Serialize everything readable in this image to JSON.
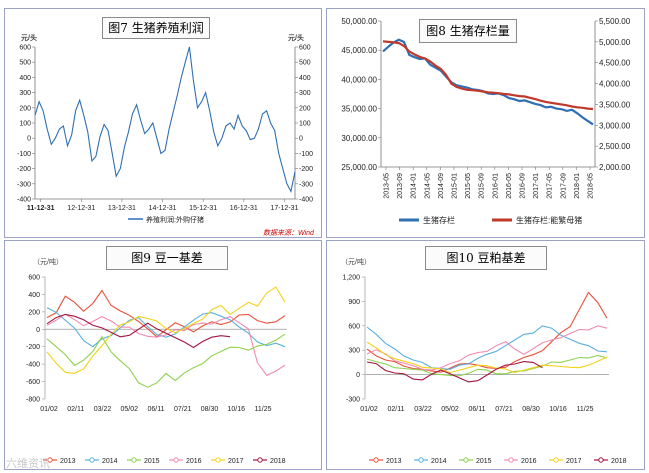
{
  "watermark": "六维资讯",
  "chart_data": [
    {
      "type": "line",
      "title": "图7 生猪养殖利润",
      "ylabel_left": "元/头",
      "ylabel_right": "元/头",
      "ylim": [
        -400,
        600
      ],
      "yticks": [
        -400,
        -300,
        -200,
        -100,
        0,
        100,
        200,
        300,
        400,
        500,
        600
      ],
      "x_ticks": [
        "11-12-31",
        "12-12-31",
        "13-12-31",
        "14-12-31",
        "15-12-31",
        "16-12-31",
        "17-12-31"
      ],
      "legend": [
        "养殖利润:外购仔猪"
      ],
      "source": "数据来源：Wind",
      "series": [
        {
          "name": "养殖利润:外购仔猪",
          "color": "#2f6fb3",
          "x": [
            2011.85,
            2011.95,
            2012.05,
            2012.15,
            2012.25,
            2012.35,
            2012.45,
            2012.55,
            2012.65,
            2012.75,
            2012.85,
            2012.95,
            2013.05,
            2013.15,
            2013.25,
            2013.35,
            2013.45,
            2013.55,
            2013.65,
            2013.75,
            2013.85,
            2013.95,
            2014.05,
            2014.15,
            2014.25,
            2014.35,
            2014.45,
            2014.55,
            2014.65,
            2014.75,
            2014.85,
            2014.95,
            2015.05,
            2015.15,
            2015.25,
            2015.35,
            2015.45,
            2015.55,
            2015.65,
            2015.75,
            2015.85,
            2015.95,
            2016.05,
            2016.15,
            2016.25,
            2016.35,
            2016.45,
            2016.55,
            2016.65,
            2016.75,
            2016.85,
            2016.95,
            2017.05,
            2017.15,
            2017.25,
            2017.35,
            2017.45,
            2017.55,
            2017.65,
            2017.75,
            2017.85,
            2017.95,
            2018.05,
            2018.15,
            2018.25
          ],
          "y": [
            150,
            240,
            180,
            60,
            -40,
            0,
            60,
            80,
            -50,
            20,
            180,
            250,
            150,
            40,
            -150,
            -120,
            10,
            90,
            50,
            -100,
            -250,
            -200,
            -60,
            40,
            160,
            220,
            120,
            30,
            60,
            100,
            0,
            -100,
            -80,
            60,
            170,
            280,
            400,
            500,
            600,
            380,
            200,
            240,
            300,
            180,
            40,
            -50,
            0,
            80,
            100,
            60,
            150,
            80,
            50,
            -10,
            0,
            60,
            160,
            180,
            100,
            50,
            -100,
            -200,
            -300,
            -350,
            -220
          ]
        }
      ]
    },
    {
      "type": "line",
      "title": "图8 生猪存栏量",
      "ylim_left": [
        25000,
        50000
      ],
      "ylim_right": [
        2000,
        5500
      ],
      "yticks_left": [
        "25,000.00",
        "30,000.00",
        "35,000.00",
        "40,000.00",
        "45,000.00",
        "50,000.00"
      ],
      "yticks_right": [
        "2,000.00",
        "2,500.00",
        "3,000.00",
        "3,500.00",
        "4,000.00",
        "4,500.00",
        "5,000.00",
        "5,500.00"
      ],
      "x_ticks": [
        "2013-05",
        "2013-09",
        "2014-01",
        "2014-05",
        "2014-09",
        "2015-01",
        "2015-05",
        "2015-09",
        "2016-01",
        "2016-05",
        "2016-09",
        "2017-01",
        "2017-05",
        "2017-09",
        "2018-01",
        "2018-05"
      ],
      "legend": [
        "生猪存栏",
        "生猪存栏:能繁母猪"
      ],
      "series": [
        {
          "name": "生猪存栏",
          "axis": "left",
          "color": "#2f6fb3",
          "y": [
            44800,
            45600,
            46300,
            46800,
            46400,
            44200,
            43800,
            43500,
            43600,
            42500,
            42000,
            41500,
            40500,
            39500,
            39000,
            38800,
            38600,
            38300,
            38200,
            38000,
            37600,
            37500,
            37600,
            37300,
            36800,
            36600,
            36300,
            36400,
            36100,
            35800,
            35600,
            35200,
            35300,
            35000,
            34900,
            34600,
            34800,
            34200,
            33500,
            32900,
            32300
          ]
        },
        {
          "name": "生猪存栏:能繁母猪",
          "axis": "right",
          "color": "#c0392b",
          "y": [
            5010,
            5000,
            4990,
            4970,
            4900,
            4770,
            4700,
            4640,
            4600,
            4530,
            4430,
            4350,
            4210,
            4000,
            3920,
            3880,
            3850,
            3840,
            3830,
            3810,
            3790,
            3780,
            3770,
            3750,
            3740,
            3720,
            3700,
            3690,
            3660,
            3630,
            3590,
            3560,
            3540,
            3520,
            3500,
            3480,
            3450,
            3430,
            3420,
            3400,
            3390
          ]
        }
      ]
    },
    {
      "type": "line",
      "title": "图9 豆一基差",
      "ylabel": "（元/吨）",
      "ylim": [
        -800,
        600
      ],
      "yticks": [
        -800,
        -600,
        -400,
        -200,
        0,
        200,
        400,
        600
      ],
      "x_ticks": [
        "01/02",
        "02/11",
        "03/22",
        "05/02",
        "06/11",
        "07/21",
        "08/30",
        "10/16",
        "11/25"
      ],
      "legend": [
        "2013",
        "2014",
        "2015",
        "2016",
        "2017",
        "2018"
      ],
      "series": [
        {
          "name": "2013",
          "color": "#e8513a",
          "y": [
            120,
            200,
            380,
            300,
            220,
            300,
            440,
            260,
            220,
            160,
            80,
            20,
            -80,
            -10,
            60,
            40,
            -30,
            30,
            100,
            60,
            80,
            150,
            180,
            100,
            60,
            100,
            160
          ]
        },
        {
          "name": "2014",
          "color": "#5ab0e0",
          "y": [
            260,
            200,
            100,
            0,
            -120,
            -200,
            -120,
            -60,
            20,
            100,
            120,
            40,
            -60,
            -100,
            -40,
            30,
            100,
            160,
            200,
            150,
            100,
            40,
            -40,
            -150,
            -200,
            -150,
            -200
          ]
        },
        {
          "name": "2015",
          "color": "#8fd14f",
          "y": [
            -100,
            -200,
            -300,
            -400,
            -350,
            -260,
            -100,
            -250,
            -360,
            -460,
            -600,
            -660,
            -620,
            -520,
            -580,
            -500,
            -450,
            -380,
            -300,
            -260,
            -220,
            -200,
            -240,
            -200,
            -160,
            -120,
            -60
          ]
        },
        {
          "name": "2016",
          "color": "#f18bb0",
          "y": [
            50,
            100,
            160,
            120,
            40,
            80,
            160,
            100,
            20,
            10,
            -40,
            -80,
            -100,
            -50,
            0,
            -20,
            40,
            80,
            60,
            100,
            160,
            80,
            0,
            -400,
            -520,
            -480,
            -420
          ]
        },
        {
          "name": "2017",
          "color": "#f2d21a",
          "y": [
            -260,
            -400,
            -480,
            -500,
            -460,
            -320,
            -180,
            -60,
            40,
            100,
            150,
            120,
            80,
            20,
            -40,
            0,
            80,
            120,
            220,
            260,
            180,
            240,
            300,
            280,
            420,
            480,
            300
          ]
        },
        {
          "name": "2018",
          "color": "#a3153f",
          "y": [
            60,
            120,
            180,
            150,
            100,
            60,
            20,
            -40,
            -100,
            -60,
            0,
            60,
            20,
            -40,
            -100,
            -160,
            -200,
            -140,
            -100,
            -60,
            -80
          ]
        }
      ]
    },
    {
      "type": "line",
      "title": "图10 豆粕基差",
      "ylabel": "（元/吨）",
      "ylim": [
        -300,
        1200
      ],
      "yticks": [
        -300,
        0,
        300,
        600,
        900,
        1200
      ],
      "ytick_labels": [
        "-300",
        "0",
        "300",
        "600",
        "900",
        "1,200"
      ],
      "x_ticks": [
        "01/02",
        "02/11",
        "03/22",
        "05/02",
        "06/11",
        "07/21",
        "08/30",
        "10/16",
        "11/25"
      ],
      "legend": [
        "2013",
        "2014",
        "2015",
        "2016",
        "2017",
        "2018"
      ],
      "series": [
        {
          "name": "2013",
          "color": "#e8513a",
          "y": [
            300,
            240,
            180,
            150,
            120,
            80,
            60,
            30,
            40,
            80,
            120,
            150,
            120,
            80,
            60,
            100,
            160,
            200,
            260,
            300,
            400,
            500,
            600,
            800,
            1000,
            900,
            700
          ]
        },
        {
          "name": "2014",
          "color": "#5ab0e0",
          "y": [
            600,
            500,
            380,
            300,
            240,
            180,
            140,
            100,
            80,
            60,
            100,
            140,
            200,
            240,
            300,
            360,
            420,
            480,
            520,
            600,
            560,
            500,
            440,
            380,
            340,
            300,
            280
          ]
        },
        {
          "name": "2015",
          "color": "#8fd14f",
          "y": [
            200,
            160,
            120,
            100,
            80,
            60,
            40,
            20,
            0,
            -20,
            0,
            20,
            60,
            40,
            20,
            10,
            30,
            60,
            80,
            100,
            140,
            160,
            180,
            200,
            220,
            240,
            200
          ]
        },
        {
          "name": "2016",
          "color": "#f18bb0",
          "y": [
            260,
            300,
            240,
            180,
            140,
            100,
            80,
            60,
            80,
            120,
            180,
            240,
            260,
            300,
            360,
            400,
            300,
            260,
            320,
            380,
            440,
            460,
            500,
            540,
            560,
            600,
            560
          ]
        },
        {
          "name": "2017",
          "color": "#f2d21a",
          "y": [
            400,
            320,
            260,
            200,
            160,
            120,
            100,
            80,
            60,
            40,
            60,
            80,
            100,
            120,
            80,
            60,
            40,
            60,
            80,
            100,
            120,
            100,
            80,
            100,
            120,
            160,
            200
          ]
        },
        {
          "name": "2018",
          "color": "#a3153f",
          "y": [
            150,
            120,
            60,
            20,
            0,
            -40,
            -60,
            0,
            40,
            20,
            -40,
            -100,
            -60,
            0,
            60,
            100,
            140,
            160,
            140,
            100
          ]
        }
      ]
    }
  ]
}
